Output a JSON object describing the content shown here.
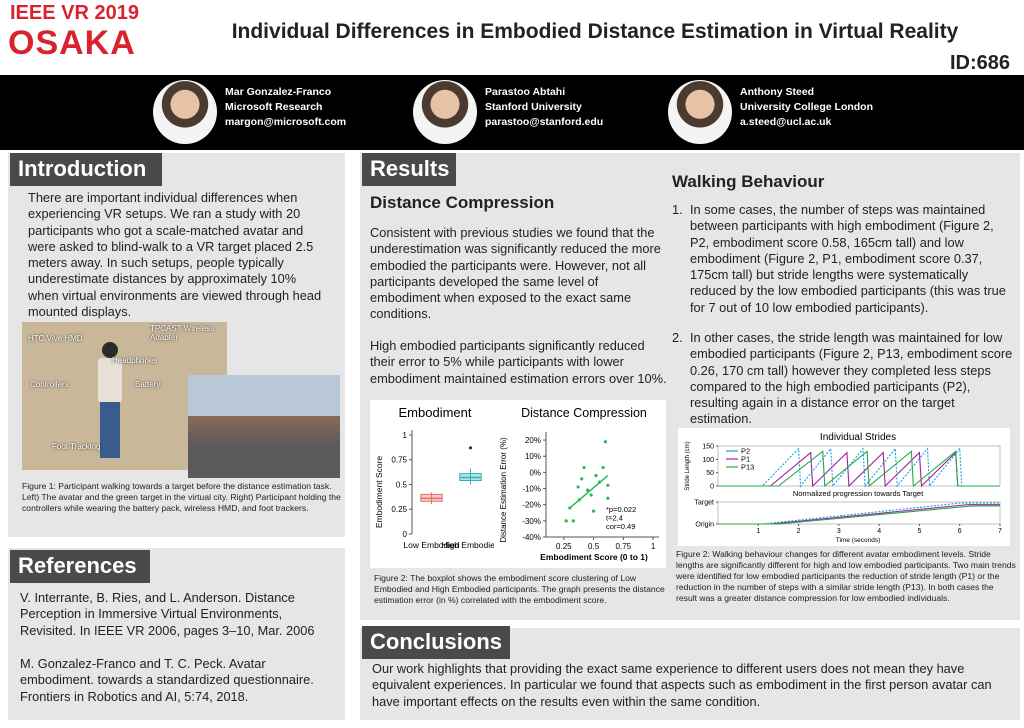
{
  "header": {
    "logo_line1": "IEEE VR 2019",
    "logo_line2": "OSAKA",
    "title": "Individual Differences in Embodied Distance Estimation in Virtual Reality",
    "id": "ID:686"
  },
  "authors": [
    {
      "name": "Mar Gonzalez-Franco",
      "affiliation": "Microsoft Research",
      "email": "margon@microsoft.com"
    },
    {
      "name": "Parastoo Abtahi",
      "affiliation": "Stanford University",
      "email": "parastoo@stanford.edu"
    },
    {
      "name": "Anthony Steed",
      "affiliation": "University College London",
      "email": "a.steed@ucl.ac.uk"
    }
  ],
  "introduction": {
    "heading": "Introduction",
    "text": "There are important individual differences when experiencing VR setups. We ran a study with 20 participants who got a scale-matched avatar and were asked to blind-walk to a VR target placed 2.5 meters away. In such setups, people typically underestimate distances by approximately 10% when virtual environments are viewed through head mounted displays.",
    "figure_labels": [
      "HTC Vive HMD",
      "TPCAST Wireless Adapter",
      "Headphones",
      "Controllers",
      "Battery",
      "Foot Tracking"
    ],
    "caption": "Figure 1: Participant walking towards a target before the distance estimation task. Left) The avatar and the green target in the virtual city. Right) Participant holding the controllers while wearing the battery pack, wireless HMD, and foot trackers."
  },
  "references": {
    "heading": "References",
    "items": [
      "V. Interrante, B. Ries, and L. Anderson. Distance Perception in Immersive Virtual Environments, Revisited. In IEEE VR 2006, pages 3–10, Mar. 2006",
      "M. Gonzalez-Franco and T. C. Peck. Avatar embodiment. towards a standardized questionnaire. Frontiers in Robotics and AI, 5:74, 2018."
    ]
  },
  "results": {
    "heading": "Results",
    "distance_compression": {
      "heading": "Distance Compression",
      "paragraphs": [
        "Consistent with previous studies we found that the underestimation was significantly reduced the more embodied the participants were. However, not all participants developed the same level of embodiment when exposed to the exact same conditions.",
        "High embodied participants significantly reduced their error to 5% while participants with lower embodiment maintained estimation errors over 10%."
      ],
      "boxplot": {
        "title": "Embodiment",
        "ylabel": "Embodiment Score",
        "ylim": [
          0,
          1.05
        ],
        "yticks": [
          0,
          0.25,
          0.5,
          0.75,
          1
        ],
        "categories": [
          "Low Embodied",
          "High Embodied"
        ],
        "colors": [
          "#e8706a",
          "#2fb3b8"
        ],
        "boxes": [
          {
            "min": 0.3,
            "q1": 0.33,
            "median": 0.36,
            "q3": 0.4,
            "max": 0.42
          },
          {
            "min": 0.5,
            "q1": 0.54,
            "median": 0.57,
            "q3": 0.61,
            "max": 0.66,
            "outliers": [
              0.87
            ]
          }
        ]
      },
      "scatter": {
        "title": "Distance Compression",
        "ylabel": "Distance Estimation Error (%)",
        "xlabel": "Embodiment Score (0 to 1)",
        "xlim": [
          0.1,
          1.05
        ],
        "ylim": [
          -40,
          25
        ],
        "xticks": [
          0.25,
          0.5,
          0.75,
          1
        ],
        "yticks": [
          {
            "value": 20,
            "label": "20%"
          },
          {
            "value": 10,
            "label": "10%"
          },
          {
            "value": 0,
            "label": "0%"
          },
          {
            "value": -10,
            "label": "-10%"
          },
          {
            "value": -20,
            "label": "-20%"
          },
          {
            "value": -30,
            "label": "-30%"
          },
          {
            "value": -40,
            "label": "-40%"
          }
        ],
        "color": "#22bb55",
        "x": [
          0.27,
          0.3,
          0.33,
          0.37,
          0.38,
          0.4,
          0.42,
          0.45,
          0.48,
          0.5,
          0.52,
          0.55,
          0.58,
          0.6,
          0.62,
          0.62
        ],
        "values": [
          -30,
          -22,
          -30,
          -9,
          -17,
          -4,
          3,
          -11,
          -14,
          -24,
          -2,
          -6,
          3,
          19,
          -8,
          -16
        ],
        "trend": {
          "x": [
            0.3,
            0.62
          ],
          "values": [
            -22,
            -2
          ]
        },
        "stats": [
          "*p=0.022",
          "t=2.4",
          "cor=0.49"
        ]
      },
      "caption": "Figure 2: The boxplot shows the embodiment score clustering of Low Embodied and High Embodied participants. The graph presents the distance estimation error (in %) correlated with the embodiment score."
    },
    "walking_behaviour": {
      "heading": "Walking Behaviour",
      "items": [
        {
          "number": "1.",
          "text": "In some cases, the number of steps was maintained between participants with high embodiment (Figure 2, P2, embodiment score 0.58, 165cm tall) and low embodiment (Figure 2, P1, embodiment score 0.37, 175cm tall) but stride lengths were systematically reduced by the low embodied participants (this was true for 7 out of 10 low embodied participants)."
        },
        {
          "number": "2.",
          "text": "In other cases, the stride length was maintained for low embodied participants (Figure 2, P13, embodiment score 0.26, 170 cm tall) however they completed less steps compared to the high embodied participants (P2), resulting again in a distance error on the target estimation."
        }
      ],
      "strides": {
        "title": "Individual Strides",
        "ylabel": "Stride Length (cm)",
        "xlim": [
          0,
          7
        ],
        "ylim": [
          0,
          150
        ],
        "yticks": [
          0,
          50,
          100,
          150
        ],
        "series": [
          {
            "name": "P2",
            "color": "#1a9fd6",
            "x": [
              0,
              1.1,
              2.0,
              2.05,
              2.8,
              2.85,
              3.6,
              3.65,
              4.4,
              4.45,
              5.2,
              5.25,
              6.0,
              6.05,
              7
            ],
            "values": [
              0,
              0,
              140,
              0,
              140,
              0,
              140,
              0,
              140,
              0,
              140,
              0,
              140,
              0,
              0
            ]
          },
          {
            "name": "P1",
            "color": "#a020a0",
            "x": [
              0,
              1.3,
              2.3,
              2.35,
              3.2,
              3.25,
              4.1,
              4.15,
              5.0,
              5.05,
              5.9,
              5.95,
              7
            ],
            "values": [
              0,
              0,
              125,
              0,
              125,
              0,
              125,
              0,
              125,
              0,
              125,
              0,
              0
            ]
          },
          {
            "name": "P13",
            "color": "#22aa44",
            "x": [
              0,
              1.5,
              2.6,
              2.65,
              3.7,
              3.75,
              4.8,
              4.85,
              5.9,
              5.95,
              7
            ],
            "values": [
              0,
              0,
              130,
              0,
              130,
              0,
              130,
              0,
              130,
              0,
              0
            ]
          }
        ]
      },
      "progression": {
        "title": "Normalized progression towards Target",
        "xlabel": "Time (seconds)",
        "xlim": [
          0,
          7
        ],
        "ylim": [
          0,
          1
        ],
        "xticks": [
          1,
          2,
          3,
          4,
          5,
          6,
          7
        ],
        "yticks": [
          {
            "value": 0,
            "label": "Origin"
          },
          {
            "value": 1,
            "label": "Target"
          }
        ],
        "series": [
          {
            "color": "#1a9fd6",
            "x": [
              0,
              1.1,
              6,
              7
            ],
            "values": [
              0,
              0,
              0.95,
              0.95
            ]
          },
          {
            "color": "#a020a0",
            "x": [
              0,
              1.3,
              6.2,
              7
            ],
            "values": [
              0,
              0,
              0.88,
              0.88
            ]
          },
          {
            "color": "#22aa44",
            "x": [
              0,
              1.5,
              6.3,
              7
            ],
            "values": [
              0,
              0,
              0.82,
              0.82
            ]
          }
        ]
      },
      "caption": "Figure 2: Walking behaviour changes for different avatar embodiment levels. Stride lengths are significantly different for high and low embodied participants. Two main trends were identified for low embodied participants the reduction of stride length (P1) or the reduction in the number of steps with a similar stride length (P13). In both cases the result was a greater distance compression for low embodied individuals."
    }
  },
  "conclusions": {
    "heading": "Conclusions",
    "text": "Our work highlights that providing the exact same experience to different users does not mean they have equivalent experiences. In particular we found that aspects such as embodiment in the first person avatar can have important effects on the results even within the same condition."
  }
}
